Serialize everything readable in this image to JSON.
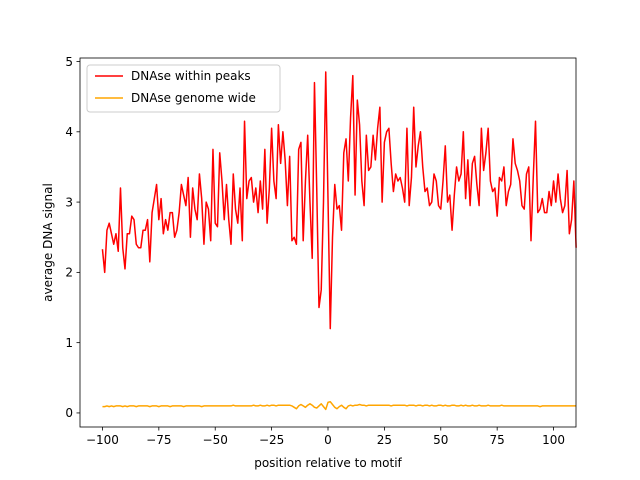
{
  "chart_data": {
    "type": "line",
    "title": "",
    "xlabel": "position relative to motif",
    "ylabel": "average DNA signal",
    "xlim": [
      -109.95,
      109.95
    ],
    "ylim": [
      -0.2,
      5.05
    ],
    "xticks": [
      -100,
      -75,
      -50,
      -25,
      0,
      25,
      50,
      75,
      100
    ],
    "xtick_labels": [
      "−100",
      "−75",
      "−50",
      "−25",
      "0",
      "25",
      "50",
      "75",
      "100"
    ],
    "yticks": [
      0,
      1,
      2,
      3,
      4,
      5
    ],
    "ytick_labels": [
      "0",
      "1",
      "2",
      "3",
      "4",
      "5"
    ],
    "grid": false,
    "legend_position": "top-left",
    "series": [
      {
        "name": "DNAse within peaks",
        "color": "#ff0000",
        "x_start": -100,
        "x_step": 1,
        "values": [
          2.33,
          2.0,
          2.6,
          2.7,
          2.55,
          2.4,
          2.55,
          2.3,
          3.2,
          2.35,
          2.05,
          2.55,
          2.55,
          2.8,
          2.75,
          2.4,
          2.35,
          2.35,
          2.6,
          2.6,
          2.75,
          2.15,
          2.85,
          3.05,
          3.25,
          2.75,
          3.05,
          2.55,
          2.75,
          2.6,
          2.85,
          2.85,
          2.5,
          2.6,
          2.85,
          3.25,
          3.1,
          2.95,
          3.35,
          2.5,
          3.2,
          2.9,
          2.75,
          3.4,
          3.05,
          2.4,
          3.0,
          2.9,
          2.45,
          3.75,
          2.7,
          2.65,
          3.7,
          3.3,
          2.75,
          3.25,
          2.75,
          2.4,
          3.4,
          2.9,
          2.7,
          3.2,
          2.45,
          4.15,
          3.05,
          3.3,
          3.35,
          3.0,
          3.2,
          2.85,
          3.3,
          2.9,
          3.75,
          2.7,
          3.2,
          4.05,
          3.3,
          3.05,
          4.1,
          3.55,
          4.0,
          3.6,
          2.95,
          3.65,
          2.45,
          2.5,
          2.4,
          3.75,
          3.85,
          2.45,
          3.3,
          3.95,
          3.0,
          2.2,
          4.7,
          3.2,
          1.5,
          1.75,
          3.0,
          4.85,
          3.05,
          1.2,
          2.5,
          3.25,
          2.9,
          2.95,
          2.6,
          3.7,
          3.9,
          3.3,
          4.2,
          4.8,
          3.1,
          4.45,
          4.1,
          3.3,
          2.95,
          3.95,
          3.45,
          3.5,
          3.95,
          3.6,
          4.05,
          4.35,
          3.0,
          3.85,
          4.0,
          4.05,
          3.55,
          3.15,
          3.4,
          3.3,
          3.35,
          3.2,
          3.0,
          4.05,
          2.95,
          3.35,
          4.35,
          3.5,
          3.8,
          4.0,
          3.5,
          3.15,
          3.2,
          2.95,
          3.0,
          3.4,
          3.3,
          2.95,
          2.9,
          3.3,
          3.8,
          3.0,
          3.1,
          2.6,
          3.1,
          3.5,
          3.3,
          3.4,
          4.0,
          3.05,
          3.6,
          2.95,
          3.55,
          3.65,
          3.25,
          2.95,
          4.05,
          3.45,
          3.7,
          4.05,
          3.3,
          3.15,
          3.2,
          2.8,
          3.35,
          3.3,
          3.5,
          2.95,
          3.15,
          3.25,
          3.9,
          3.55,
          3.45,
          3.3,
          2.95,
          2.9,
          3.4,
          3.5,
          2.45,
          3.35,
          4.15,
          2.85,
          2.9,
          3.05,
          2.85,
          2.85,
          3.15,
          2.95,
          3.3,
          3.0,
          3.4,
          3.05,
          2.85,
          2.95,
          3.45,
          2.55,
          2.75,
          3.3,
          2.35
        ]
      },
      {
        "name": "DNAse genome wide",
        "color": "#ffa500",
        "x_start": -100,
        "x_step": 1,
        "values": [
          0.09,
          0.09,
          0.1,
          0.09,
          0.1,
          0.09,
          0.1,
          0.1,
          0.1,
          0.09,
          0.1,
          0.09,
          0.1,
          0.1,
          0.1,
          0.09,
          0.1,
          0.1,
          0.1,
          0.1,
          0.1,
          0.09,
          0.1,
          0.1,
          0.1,
          0.09,
          0.1,
          0.1,
          0.1,
          0.1,
          0.09,
          0.1,
          0.1,
          0.1,
          0.1,
          0.1,
          0.09,
          0.1,
          0.1,
          0.1,
          0.1,
          0.1,
          0.1,
          0.1,
          0.09,
          0.1,
          0.1,
          0.1,
          0.1,
          0.1,
          0.1,
          0.1,
          0.1,
          0.1,
          0.1,
          0.1,
          0.1,
          0.1,
          0.11,
          0.1,
          0.1,
          0.1,
          0.1,
          0.1,
          0.1,
          0.1,
          0.1,
          0.11,
          0.1,
          0.1,
          0.11,
          0.1,
          0.1,
          0.11,
          0.1,
          0.11,
          0.11,
          0.1,
          0.11,
          0.11,
          0.11,
          0.11,
          0.11,
          0.11,
          0.1,
          0.08,
          0.06,
          0.1,
          0.12,
          0.1,
          0.08,
          0.11,
          0.13,
          0.11,
          0.08,
          0.07,
          0.1,
          0.13,
          0.09,
          0.05,
          0.15,
          0.16,
          0.12,
          0.08,
          0.06,
          0.09,
          0.11,
          0.08,
          0.06,
          0.1,
          0.11,
          0.1,
          0.11,
          0.11,
          0.12,
          0.11,
          0.11,
          0.1,
          0.11,
          0.11,
          0.11,
          0.11,
          0.11,
          0.11,
          0.11,
          0.11,
          0.11,
          0.11,
          0.1,
          0.11,
          0.11,
          0.11,
          0.11,
          0.11,
          0.11,
          0.1,
          0.11,
          0.11,
          0.11,
          0.1,
          0.11,
          0.11,
          0.1,
          0.11,
          0.11,
          0.1,
          0.11,
          0.1,
          0.1,
          0.11,
          0.11,
          0.1,
          0.11,
          0.1,
          0.1,
          0.11,
          0.11,
          0.1,
          0.1,
          0.11,
          0.1,
          0.11,
          0.1,
          0.1,
          0.11,
          0.1,
          0.1,
          0.11,
          0.1,
          0.1,
          0.1,
          0.11,
          0.1,
          0.1,
          0.1,
          0.1,
          0.1,
          0.11,
          0.1,
          0.1,
          0.1,
          0.1,
          0.1,
          0.1,
          0.1,
          0.1,
          0.1,
          0.1,
          0.1,
          0.1,
          0.1,
          0.1,
          0.1,
          0.1,
          0.09,
          0.1,
          0.1,
          0.1,
          0.1,
          0.1,
          0.1,
          0.1,
          0.1,
          0.1,
          0.1,
          0.1,
          0.1,
          0.1,
          0.1,
          0.1,
          0.1
        ]
      }
    ]
  }
}
